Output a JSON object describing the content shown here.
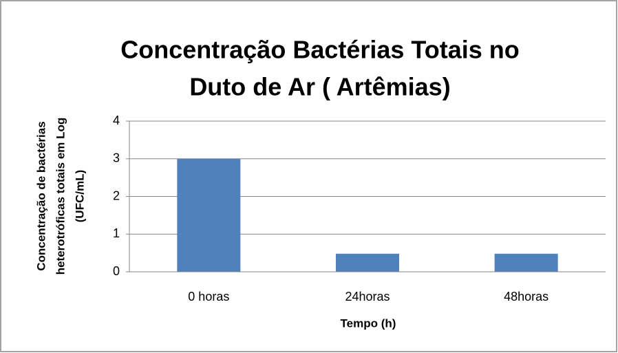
{
  "chart_data": {
    "type": "bar",
    "title": [
      "Concentração Bactérias Totais no",
      "Duto de Ar ( Artêmias)"
    ],
    "y_label": [
      "Concentração de bactérias",
      "heterotróficas totais em Log",
      "(UFC/mL)"
    ],
    "x_label": "Tempo (h)",
    "categories": [
      "0 horas",
      "24horas",
      "48horas"
    ],
    "values": [
      3,
      0.48,
      0.48
    ],
    "color": "#4f81bd",
    "ylim": [
      0,
      4
    ],
    "yticks": [
      0,
      1,
      2,
      3,
      4
    ],
    "grid": true
  }
}
